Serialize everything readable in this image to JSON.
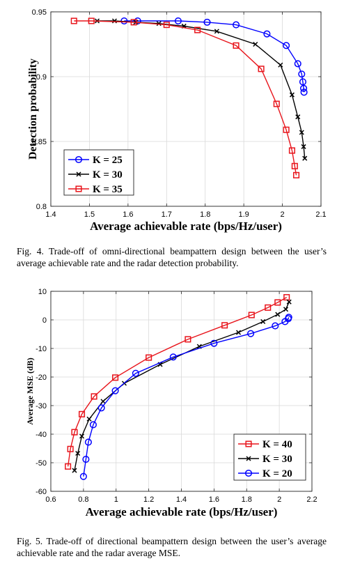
{
  "chart_data": [
    {
      "type": "line",
      "xlabel": "Average achievable rate (bps/Hz/user)",
      "ylabel": "Detection probability",
      "xlim": [
        1.4,
        2.1
      ],
      "ylim": [
        0.8,
        0.95
      ],
      "xticks": [
        "1.4",
        "1.5",
        "1.6",
        "1.7",
        "1.8",
        "1.9",
        "2",
        "2.1"
      ],
      "yticks": [
        "0.8",
        "0.85",
        "0.9",
        "0.95"
      ],
      "grid": true,
      "legend_position": "bottom-left",
      "series": [
        {
          "name": "K = 25",
          "color": "#0000ff",
          "marker": "circle",
          "x": [
            1.59,
            1.625,
            1.73,
            1.805,
            1.88,
            1.96,
            2.01,
            2.04,
            2.05,
            2.053,
            2.055,
            2.056
          ],
          "y": [
            0.943,
            0.943,
            0.943,
            0.942,
            0.94,
            0.933,
            0.924,
            0.91,
            0.902,
            0.896,
            0.891,
            0.888
          ]
        },
        {
          "name": "K = 30",
          "color": "#000000",
          "marker": "x",
          "x": [
            1.52,
            1.565,
            1.62,
            1.68,
            1.745,
            1.83,
            1.93,
            1.995,
            2.025,
            2.04,
            2.05,
            2.055,
            2.058
          ],
          "y": [
            0.943,
            0.943,
            0.942,
            0.941,
            0.939,
            0.935,
            0.925,
            0.909,
            0.886,
            0.869,
            0.857,
            0.846,
            0.837
          ]
        },
        {
          "name": "K = 35",
          "color": "#e8141b",
          "marker": "square",
          "x": [
            1.46,
            1.505,
            1.615,
            1.7,
            1.78,
            1.88,
            1.945,
            1.985,
            2.01,
            2.025,
            2.032,
            2.036
          ],
          "y": [
            0.943,
            0.943,
            0.942,
            0.94,
            0.936,
            0.924,
            0.906,
            0.879,
            0.859,
            0.843,
            0.831,
            0.824
          ]
        }
      ]
    },
    {
      "type": "line",
      "xlabel": "Average achievable rate (bps/Hz/user)",
      "ylabel": "Average MSE (dB)",
      "xlim": [
        0.6,
        2.2
      ],
      "ylim": [
        -60,
        10
      ],
      "xticks": [
        "0.6",
        "0.8",
        "1",
        "1.2",
        "1.4",
        "1.6",
        "1.8",
        "2",
        "2.2"
      ],
      "yticks": [
        "-60",
        "-50",
        "-40",
        "-30",
        "-20",
        "-10",
        "0",
        "10"
      ],
      "grid": true,
      "legend_position": "bottom-right",
      "series": [
        {
          "name": "K = 40",
          "color": "#e8141b",
          "marker": "square",
          "x": [
            0.705,
            0.72,
            0.745,
            0.79,
            0.865,
            0.995,
            1.2,
            1.44,
            1.665,
            1.83,
            1.93,
            1.99,
            2.045
          ],
          "y": [
            -51.3,
            -45.2,
            -39.3,
            -33,
            -26.8,
            -20.2,
            -13.2,
            -6.8,
            -1.9,
            1.7,
            4.3,
            6.1,
            7.9
          ]
        },
        {
          "name": "K = 30",
          "color": "#000000",
          "marker": "x",
          "x": [
            0.745,
            0.765,
            0.79,
            0.835,
            0.92,
            1.05,
            1.27,
            1.51,
            1.75,
            1.9,
            1.99,
            2.04,
            2.06
          ],
          "y": [
            -52.7,
            -46.7,
            -40.7,
            -34.7,
            -28.5,
            -22.2,
            -15.6,
            -9.3,
            -4.4,
            -0.6,
            1.9,
            3.7,
            6.3
          ]
        },
        {
          "name": "K = 20",
          "color": "#0000ff",
          "marker": "circle",
          "x": [
            0.8,
            0.815,
            0.83,
            0.86,
            0.91,
            0.995,
            1.12,
            1.35,
            1.6,
            1.825,
            1.975,
            2.035,
            2.055,
            2.058
          ],
          "y": [
            -54.8,
            -48.8,
            -42.8,
            -36.7,
            -30.8,
            -24.8,
            -18.7,
            -13,
            -8.2,
            -4.8,
            -2.1,
            -0.6,
            0.4,
            0.9
          ]
        }
      ]
    }
  ],
  "captions": {
    "fig4": "Fig. 4.  Trade-off of omni-directional beampattern design between the user’s average achievable rate and the radar detection probability.",
    "fig5": "Fig. 5.  Trade-off of directional beampattern design between the user’s average achievable rate and the radar average MSE."
  }
}
